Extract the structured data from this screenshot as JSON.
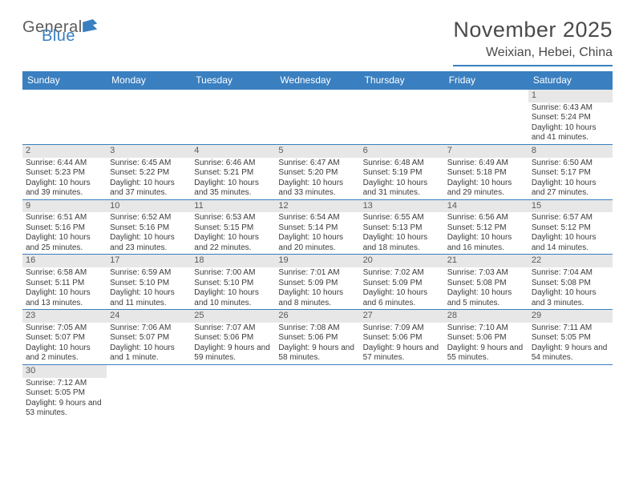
{
  "logo": {
    "word1": "General",
    "word2": "Blue",
    "text_color_g": "#5c5c5c",
    "text_color_b": "#3a7fc0",
    "flag_color": "#3a7fc0"
  },
  "title": "November 2025",
  "subtitle": "Weixian, Hebei, China",
  "colors": {
    "header_bg": "#3a7fc0",
    "header_text": "#ffffff",
    "daynum_bg": "#e7e7e7",
    "daynum_text": "#5a5a5a",
    "cell_text": "#3b3b3b",
    "rule": "#3a7fc0"
  },
  "day_labels": [
    "Sunday",
    "Monday",
    "Tuesday",
    "Wednesday",
    "Thursday",
    "Friday",
    "Saturday"
  ],
  "weeks": [
    [
      null,
      null,
      null,
      null,
      null,
      null,
      {
        "n": "1",
        "sr": "Sunrise: 6:43 AM",
        "ss": "Sunset: 5:24 PM",
        "dl": "Daylight: 10 hours and 41 minutes."
      }
    ],
    [
      {
        "n": "2",
        "sr": "Sunrise: 6:44 AM",
        "ss": "Sunset: 5:23 PM",
        "dl": "Daylight: 10 hours and 39 minutes."
      },
      {
        "n": "3",
        "sr": "Sunrise: 6:45 AM",
        "ss": "Sunset: 5:22 PM",
        "dl": "Daylight: 10 hours and 37 minutes."
      },
      {
        "n": "4",
        "sr": "Sunrise: 6:46 AM",
        "ss": "Sunset: 5:21 PM",
        "dl": "Daylight: 10 hours and 35 minutes."
      },
      {
        "n": "5",
        "sr": "Sunrise: 6:47 AM",
        "ss": "Sunset: 5:20 PM",
        "dl": "Daylight: 10 hours and 33 minutes."
      },
      {
        "n": "6",
        "sr": "Sunrise: 6:48 AM",
        "ss": "Sunset: 5:19 PM",
        "dl": "Daylight: 10 hours and 31 minutes."
      },
      {
        "n": "7",
        "sr": "Sunrise: 6:49 AM",
        "ss": "Sunset: 5:18 PM",
        "dl": "Daylight: 10 hours and 29 minutes."
      },
      {
        "n": "8",
        "sr": "Sunrise: 6:50 AM",
        "ss": "Sunset: 5:17 PM",
        "dl": "Daylight: 10 hours and 27 minutes."
      }
    ],
    [
      {
        "n": "9",
        "sr": "Sunrise: 6:51 AM",
        "ss": "Sunset: 5:16 PM",
        "dl": "Daylight: 10 hours and 25 minutes."
      },
      {
        "n": "10",
        "sr": "Sunrise: 6:52 AM",
        "ss": "Sunset: 5:16 PM",
        "dl": "Daylight: 10 hours and 23 minutes."
      },
      {
        "n": "11",
        "sr": "Sunrise: 6:53 AM",
        "ss": "Sunset: 5:15 PM",
        "dl": "Daylight: 10 hours and 22 minutes."
      },
      {
        "n": "12",
        "sr": "Sunrise: 6:54 AM",
        "ss": "Sunset: 5:14 PM",
        "dl": "Daylight: 10 hours and 20 minutes."
      },
      {
        "n": "13",
        "sr": "Sunrise: 6:55 AM",
        "ss": "Sunset: 5:13 PM",
        "dl": "Daylight: 10 hours and 18 minutes."
      },
      {
        "n": "14",
        "sr": "Sunrise: 6:56 AM",
        "ss": "Sunset: 5:12 PM",
        "dl": "Daylight: 10 hours and 16 minutes."
      },
      {
        "n": "15",
        "sr": "Sunrise: 6:57 AM",
        "ss": "Sunset: 5:12 PM",
        "dl": "Daylight: 10 hours and 14 minutes."
      }
    ],
    [
      {
        "n": "16",
        "sr": "Sunrise: 6:58 AM",
        "ss": "Sunset: 5:11 PM",
        "dl": "Daylight: 10 hours and 13 minutes."
      },
      {
        "n": "17",
        "sr": "Sunrise: 6:59 AM",
        "ss": "Sunset: 5:10 PM",
        "dl": "Daylight: 10 hours and 11 minutes."
      },
      {
        "n": "18",
        "sr": "Sunrise: 7:00 AM",
        "ss": "Sunset: 5:10 PM",
        "dl": "Daylight: 10 hours and 10 minutes."
      },
      {
        "n": "19",
        "sr": "Sunrise: 7:01 AM",
        "ss": "Sunset: 5:09 PM",
        "dl": "Daylight: 10 hours and 8 minutes."
      },
      {
        "n": "20",
        "sr": "Sunrise: 7:02 AM",
        "ss": "Sunset: 5:09 PM",
        "dl": "Daylight: 10 hours and 6 minutes."
      },
      {
        "n": "21",
        "sr": "Sunrise: 7:03 AM",
        "ss": "Sunset: 5:08 PM",
        "dl": "Daylight: 10 hours and 5 minutes."
      },
      {
        "n": "22",
        "sr": "Sunrise: 7:04 AM",
        "ss": "Sunset: 5:08 PM",
        "dl": "Daylight: 10 hours and 3 minutes."
      }
    ],
    [
      {
        "n": "23",
        "sr": "Sunrise: 7:05 AM",
        "ss": "Sunset: 5:07 PM",
        "dl": "Daylight: 10 hours and 2 minutes."
      },
      {
        "n": "24",
        "sr": "Sunrise: 7:06 AM",
        "ss": "Sunset: 5:07 PM",
        "dl": "Daylight: 10 hours and 1 minute."
      },
      {
        "n": "25",
        "sr": "Sunrise: 7:07 AM",
        "ss": "Sunset: 5:06 PM",
        "dl": "Daylight: 9 hours and 59 minutes."
      },
      {
        "n": "26",
        "sr": "Sunrise: 7:08 AM",
        "ss": "Sunset: 5:06 PM",
        "dl": "Daylight: 9 hours and 58 minutes."
      },
      {
        "n": "27",
        "sr": "Sunrise: 7:09 AM",
        "ss": "Sunset: 5:06 PM",
        "dl": "Daylight: 9 hours and 57 minutes."
      },
      {
        "n": "28",
        "sr": "Sunrise: 7:10 AM",
        "ss": "Sunset: 5:06 PM",
        "dl": "Daylight: 9 hours and 55 minutes."
      },
      {
        "n": "29",
        "sr": "Sunrise: 7:11 AM",
        "ss": "Sunset: 5:05 PM",
        "dl": "Daylight: 9 hours and 54 minutes."
      }
    ],
    [
      {
        "n": "30",
        "sr": "Sunrise: 7:12 AM",
        "ss": "Sunset: 5:05 PM",
        "dl": "Daylight: 9 hours and 53 minutes."
      },
      null,
      null,
      null,
      null,
      null,
      null
    ]
  ]
}
